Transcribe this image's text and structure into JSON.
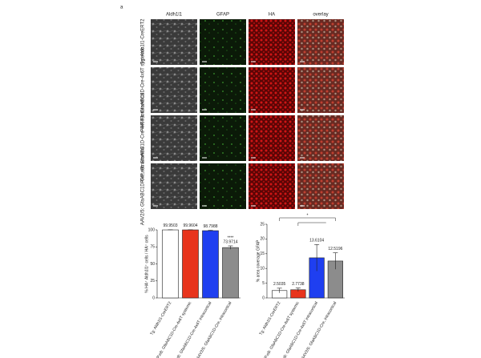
{
  "figure": {
    "panel_label": "a",
    "columns": [
      "Aldh1l1",
      "GFAP",
      "HA",
      "overlay"
    ],
    "rows": [
      "Tg: Aldh1l1-CreERT2",
      "PHP.eB: GfaABC1D-Cre-4x6T systemic",
      "PHP.eB: GfaABC1D-Cre-4x6T intracortical",
      "AAV2/5: GfaABC1D-Cre, intracortical"
    ]
  },
  "chart_data": [
    {
      "type": "bar",
      "ylabel": "% HA⁺ Aldh1l1⁺ cells / HA⁺ cells",
      "categories": [
        "Tg: Aldh1l1-CreERT2",
        "PHP.eB: GfaABC1D-Cre-4x6T systemic",
        "PHP.eB: GfaABC1D-Cre-4x6T intracortical",
        "AAV2/5: GfaABC1D-Cre, intracortical"
      ],
      "values": [
        99.9503,
        99.9604,
        98.7988,
        73.9714
      ],
      "errors": [
        0.2,
        0.2,
        0.6,
        2.5
      ],
      "colors": [
        "#ffffff",
        "#e8341c",
        "#1f3ff0",
        "#8c8c8c"
      ],
      "ylim": [
        0,
        100
      ],
      "yticks": [
        0,
        25,
        50,
        75,
        100
      ],
      "annotations": [
        "****"
      ]
    },
    {
      "type": "bar",
      "ylabel": "% area coverage GFAP",
      "categories": [
        "Tg: Aldh1l1-CreERT2",
        "PHP.eB: GfaABC1D-Cre-4x6T systemic",
        "PHP.eB: GfaABC1D-Cre-4x6T intracortical",
        "AAV2/5: GfaABC1D-Cre, intracortical"
      ],
      "values": [
        2.5035,
        2.7738,
        13.6104,
        12.5196
      ],
      "errors": [
        0.8,
        0.6,
        4.5,
        2.8
      ],
      "colors": [
        "#ffffff",
        "#e8341c",
        "#1f3ff0",
        "#8c8c8c"
      ],
      "ylim": [
        0,
        25
      ],
      "yticks": [
        0,
        5,
        10,
        15,
        20,
        25
      ],
      "annotations": [
        "*"
      ]
    }
  ]
}
